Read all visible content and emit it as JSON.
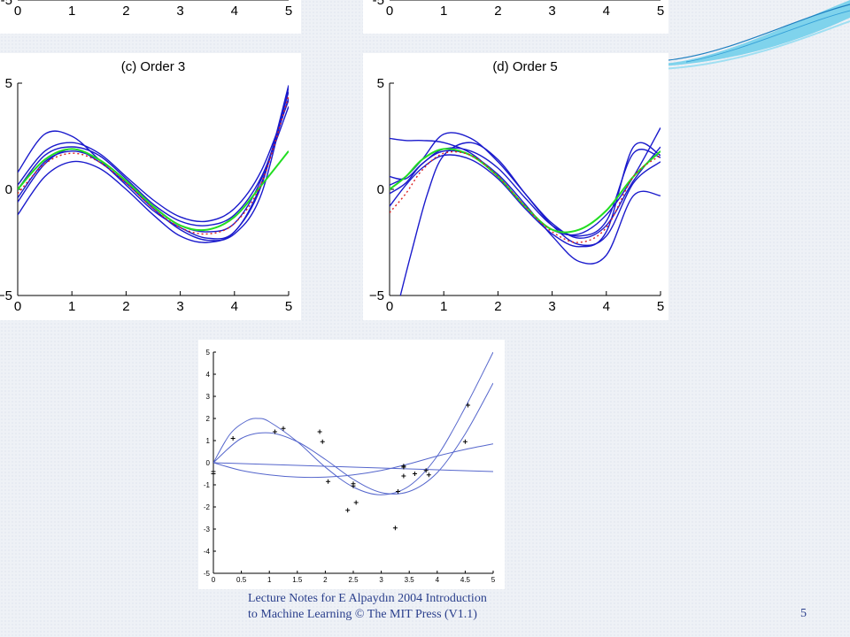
{
  "chart_data": [
    {
      "type": "line",
      "id": "top-left-partial",
      "title": "",
      "xlim": [
        0,
        5
      ],
      "ylim": [
        -5,
        5
      ],
      "xticks": [
        "0",
        "1",
        "2",
        "3",
        "4",
        "5"
      ],
      "yticks": [
        "-5"
      ],
      "series": []
    },
    {
      "type": "line",
      "id": "top-right-partial",
      "title": "",
      "xlim": [
        0,
        5
      ],
      "ylim": [
        -5,
        5
      ],
      "xticks": [
        "0",
        "1",
        "2",
        "3",
        "4",
        "5"
      ],
      "yticks": [
        "-5"
      ],
      "series": []
    },
    {
      "type": "line",
      "id": "order3",
      "title": "(c) Order 3",
      "xlim": [
        0,
        5
      ],
      "ylim": [
        -5,
        5
      ],
      "xticks": [
        "0",
        "1",
        "2",
        "3",
        "4",
        "5"
      ],
      "yticks": [
        "5",
        "0",
        "−5"
      ],
      "series": [
        {
          "color": "#1a1acc",
          "dash": "",
          "x": [
            0,
            0.5,
            1,
            1.5,
            2,
            2.5,
            3,
            3.5,
            4,
            4.5,
            5
          ],
          "y": [
            0.8,
            2.6,
            2.5,
            1.4,
            0.2,
            -1.0,
            -1.8,
            -2.3,
            -2.0,
            0.3,
            4.6
          ]
        },
        {
          "color": "#1a1acc",
          "dash": "",
          "x": [
            0,
            0.5,
            1,
            1.5,
            2,
            2.5,
            3,
            3.5,
            4,
            4.5,
            5
          ],
          "y": [
            0.0,
            1.6,
            2.0,
            1.6,
            0.5,
            -0.7,
            -1.5,
            -1.7,
            -1.2,
            0.6,
            3.9
          ]
        },
        {
          "color": "#1a1acc",
          "dash": "",
          "x": [
            0,
            0.5,
            1,
            1.5,
            2,
            2.5,
            3,
            3.5,
            4,
            4.5,
            5
          ],
          "y": [
            -0.6,
            1.2,
            1.9,
            1.3,
            0.3,
            -0.9,
            -1.9,
            -2.4,
            -2.1,
            -0.2,
            4.8
          ]
        },
        {
          "color": "#1a1acc",
          "dash": "",
          "x": [
            0,
            0.5,
            1,
            1.5,
            2,
            2.5,
            3,
            3.5,
            4,
            4.5,
            5
          ],
          "y": [
            0.2,
            1.8,
            2.2,
            1.7,
            0.6,
            -0.5,
            -1.3,
            -1.5,
            -0.9,
            0.9,
            4.2
          ]
        },
        {
          "color": "#1a1acc",
          "dash": "",
          "x": [
            0,
            0.5,
            1,
            1.5,
            2,
            2.5,
            3,
            3.5,
            4,
            4.5,
            5
          ],
          "y": [
            -1.2,
            0.6,
            1.3,
            1.0,
            0.0,
            -1.2,
            -2.2,
            -2.5,
            -2.0,
            0.2,
            4.9
          ]
        },
        {
          "color": "#1a1acc",
          "dash": "",
          "x": [
            0,
            0.5,
            1,
            1.5,
            2,
            2.5,
            3,
            3.5,
            4,
            4.5,
            5
          ],
          "y": [
            -0.4,
            1.3,
            1.8,
            1.4,
            0.4,
            -0.8,
            -1.7,
            -2.0,
            -1.6,
            0.5,
            4.3
          ]
        },
        {
          "color": "#22dd22",
          "dash": "",
          "x": [
            0,
            0.5,
            1,
            1.5,
            2,
            2.5,
            3,
            3.5,
            4,
            4.5,
            5
          ],
          "y": [
            0.0,
            1.4,
            1.9,
            1.4,
            0.4,
            -0.8,
            -1.7,
            -1.9,
            -1.3,
            0.2,
            1.8
          ]
        },
        {
          "color": "#dd2222",
          "dash": "2,3",
          "x": [
            0,
            0.5,
            1,
            1.5,
            2,
            2.5,
            3,
            3.5,
            4,
            4.5,
            5
          ],
          "y": [
            -0.2,
            1.2,
            1.7,
            1.3,
            0.3,
            -0.9,
            -1.8,
            -2.1,
            -1.6,
            0.3,
            4.4
          ]
        }
      ]
    },
    {
      "type": "line",
      "id": "order5",
      "title": "(d) Order 5",
      "xlim": [
        0,
        5
      ],
      "ylim": [
        -5,
        5
      ],
      "xticks": [
        "0",
        "1",
        "2",
        "3",
        "4",
        "5"
      ],
      "yticks": [
        "5",
        "0",
        "−5"
      ],
      "series": [
        {
          "color": "#1a1acc",
          "dash": "",
          "x": [
            0,
            0.3,
            0.6,
            1,
            1.5,
            2,
            2.5,
            3,
            3.5,
            4,
            4.5,
            5
          ],
          "y": [
            2.4,
            2.3,
            2.3,
            2.2,
            1.7,
            0.6,
            -0.8,
            -1.9,
            -2.1,
            -1.2,
            0.6,
            2.9
          ]
        },
        {
          "color": "#1a1acc",
          "dash": "",
          "x": [
            0.2,
            0.4,
            0.7,
            1,
            1.5,
            2,
            2.5,
            3,
            3.5,
            4,
            4.5,
            5
          ],
          "y": [
            -5,
            -3.0,
            -0.2,
            1.6,
            2.2,
            1.4,
            -0.2,
            -1.7,
            -2.6,
            -2.2,
            0.3,
            1.3
          ]
        },
        {
          "color": "#1a1acc",
          "dash": "",
          "x": [
            0,
            0.3,
            0.6,
            1,
            1.5,
            2,
            2.5,
            3,
            3.5,
            4,
            4.5,
            5
          ],
          "y": [
            0.6,
            0.5,
            1.2,
            1.9,
            1.8,
            1.0,
            -0.4,
            -1.7,
            -2.2,
            -1.5,
            1.7,
            1.5
          ]
        },
        {
          "color": "#1a1acc",
          "dash": "",
          "x": [
            0,
            0.3,
            0.6,
            1,
            1.5,
            2,
            2.5,
            3,
            3.5,
            4,
            4.5,
            5
          ],
          "y": [
            -0.2,
            0.3,
            1.2,
            1.8,
            1.6,
            0.7,
            -0.7,
            -2.2,
            -3.4,
            -3.1,
            -0.3,
            -0.3
          ]
        },
        {
          "color": "#1a1acc",
          "dash": "",
          "x": [
            0,
            0.3,
            0.6,
            1,
            1.5,
            2,
            2.5,
            3,
            3.5,
            4,
            4.5,
            5
          ],
          "y": [
            -0.8,
            0.2,
            1.0,
            1.6,
            1.4,
            0.5,
            -0.9,
            -2.1,
            -2.7,
            -2.0,
            2.0,
            1.6
          ]
        },
        {
          "color": "#1a1acc",
          "dash": "",
          "x": [
            0,
            0.3,
            0.6,
            1,
            1.5,
            2,
            2.5,
            3,
            3.5,
            4,
            4.5,
            5
          ],
          "y": [
            0.2,
            0.6,
            1.4,
            2.6,
            2.4,
            1.3,
            -0.2,
            -1.6,
            -2.3,
            -1.7,
            0.4,
            2.0
          ]
        },
        {
          "color": "#22dd22",
          "dash": "",
          "x": [
            0,
            0.3,
            0.6,
            1,
            1.5,
            2,
            2.5,
            3,
            3.5,
            4,
            4.5,
            5
          ],
          "y": [
            0.0,
            0.6,
            1.4,
            1.9,
            1.6,
            0.6,
            -0.8,
            -1.9,
            -1.9,
            -1.0,
            0.6,
            1.8
          ]
        },
        {
          "color": "#dd2222",
          "dash": "2,3",
          "x": [
            0,
            0.3,
            0.6,
            1,
            1.5,
            2,
            2.5,
            3,
            3.5,
            4,
            4.5,
            5
          ],
          "y": [
            -1.1,
            -0.2,
            0.9,
            1.7,
            1.6,
            0.6,
            -0.8,
            -2.0,
            -2.5,
            -1.8,
            0.6,
            1.6
          ]
        }
      ]
    },
    {
      "type": "scatter",
      "id": "bottom-fit",
      "title": "",
      "xlim": [
        0,
        5
      ],
      "ylim": [
        -5,
        5
      ],
      "xticks": [
        "0",
        "0.5",
        "1",
        "1.5",
        "2",
        "2.5",
        "3",
        "3.5",
        "4",
        "4.5",
        "5"
      ],
      "yticks": [
        "5",
        "4",
        "3",
        "2",
        "1",
        "0",
        "-1",
        "-2",
        "-3",
        "-4",
        "-5"
      ],
      "points": {
        "x": [
          0.0,
          0.0,
          0.35,
          1.1,
          1.25,
          1.9,
          1.95,
          2.05,
          2.4,
          2.5,
          2.5,
          2.55,
          3.25,
          3.3,
          3.4,
          3.4,
          3.4,
          3.6,
          3.8,
          3.85,
          4.5,
          4.55
        ],
        "y": [
          -0.4,
          -0.5,
          1.1,
          1.4,
          1.55,
          1.4,
          0.95,
          -0.85,
          -2.15,
          -0.95,
          -1.05,
          -1.8,
          -2.95,
          -1.3,
          -0.6,
          -0.15,
          -0.2,
          -0.5,
          -0.35,
          -0.55,
          0.95,
          2.6
        ]
      },
      "series": [
        {
          "color": "#5566cc",
          "x": [
            0,
            5
          ],
          "y": [
            0,
            -0.4
          ]
        },
        {
          "color": "#5566cc",
          "x": [
            0,
            0.5,
            1,
            1.5,
            2,
            2.5,
            3,
            3.5,
            4,
            4.5,
            5
          ],
          "y": [
            0,
            -0.35,
            -0.55,
            -0.65,
            -0.65,
            -0.55,
            -0.35,
            -0.05,
            0.3,
            0.6,
            0.85
          ]
        },
        {
          "color": "#5566cc",
          "x": [
            0,
            0.5,
            1,
            1.5,
            2,
            2.5,
            3,
            3.5,
            4,
            4.5,
            5
          ],
          "y": [
            0,
            1.1,
            1.35,
            0.95,
            0.15,
            -0.75,
            -1.35,
            -1.3,
            -0.45,
            1.3,
            3.6
          ]
        },
        {
          "color": "#5566cc",
          "x": [
            0,
            0.3,
            0.6,
            0.8,
            1,
            1.5,
            2,
            2.5,
            3,
            3.5,
            4,
            4.5,
            5
          ],
          "y": [
            0,
            1.3,
            1.9,
            2.0,
            1.85,
            0.95,
            -0.2,
            -1.1,
            -1.45,
            -1.05,
            0.3,
            2.5,
            5.0
          ]
        }
      ]
    }
  ],
  "footer": {
    "line1": "Lecture Notes for E Alpaydın 2004 Introduction",
    "line2": "to Machine Learning © The MIT Press (V1.1)",
    "page": "5"
  },
  "colors": {
    "model_curve": "#1a1acc",
    "true_function": "#22dd22",
    "average_fit": "#dd2222",
    "footer_text": "#2a3f8c"
  }
}
